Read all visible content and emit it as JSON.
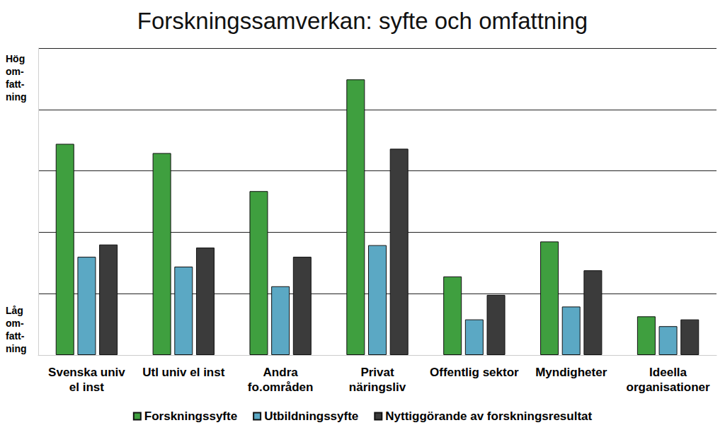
{
  "chart_data": {
    "type": "bar",
    "title": "Forskningssamverkan: syfte och omfattning",
    "categories": [
      "Svenska univ\nel inst",
      "Utl univ el inst",
      "Andra\nfo.områden",
      "Privat\nnäringsliv",
      "Offentlig sektor",
      "Myndigheter",
      "Ideella\norganisationer"
    ],
    "series": [
      {
        "name": "Forskningssyfte",
        "color": "#3f9f3f",
        "values": [
          3.44,
          3.29,
          2.67,
          4.49,
          1.28,
          1.85,
          0.63
        ]
      },
      {
        "name": "Utbildningssyfte",
        "color": "#5ba8c4",
        "values": [
          1.6,
          1.44,
          1.12,
          1.79,
          0.58,
          0.79,
          0.47
        ]
      },
      {
        "name": "Nyttiggörande av forskningsresultat",
        "color": "#3b3b3b",
        "values": [
          1.8,
          1.75,
          1.6,
          3.36,
          0.98,
          1.38,
          0.58
        ]
      }
    ],
    "ylim": [
      0,
      5
    ],
    "yticks": [
      0,
      1,
      2,
      3,
      4,
      5
    ],
    "grid": true,
    "tick_labels": "x",
    "legend": "bottom",
    "annotations": [
      "Hög\nom-\nfatt-\nning",
      "Låg\nom-\nfatt-\nning"
    ]
  }
}
